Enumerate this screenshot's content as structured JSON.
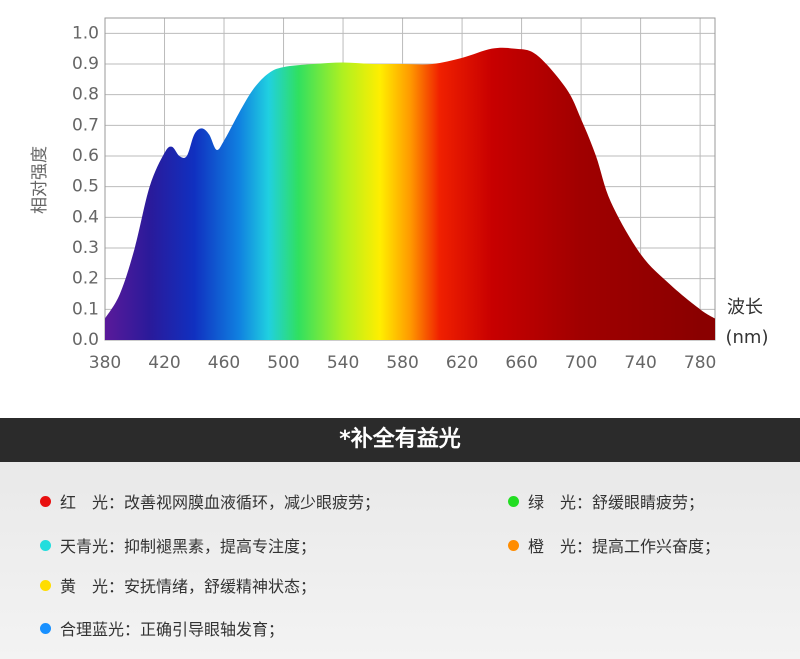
{
  "chart_data": {
    "type": "spectrum-area",
    "ylabel": "相对强度",
    "xlabel": "波长",
    "xlabel_unit": "(nm)",
    "x": [
      380,
      390,
      400,
      410,
      420,
      425,
      430,
      435,
      440,
      445,
      450,
      455,
      460,
      470,
      480,
      490,
      500,
      520,
      540,
      560,
      580,
      600,
      620,
      640,
      655,
      670,
      690,
      700,
      710,
      720,
      740,
      760,
      780,
      790
    ],
    "y": [
      0.07,
      0.15,
      0.3,
      0.5,
      0.61,
      0.63,
      0.6,
      0.6,
      0.67,
      0.69,
      0.67,
      0.62,
      0.65,
      0.74,
      0.82,
      0.87,
      0.89,
      0.9,
      0.905,
      0.9,
      0.9,
      0.9,
      0.92,
      0.95,
      0.95,
      0.93,
      0.82,
      0.72,
      0.6,
      0.45,
      0.28,
      0.18,
      0.1,
      0.07
    ],
    "gradient_nm": [
      380,
      410,
      440,
      470,
      490,
      510,
      540,
      565,
      585,
      605,
      640,
      700,
      780
    ],
    "gradient_colors": [
      "#5a1a9a",
      "#2a1a9a",
      "#1030c0",
      "#1080e0",
      "#20d0e0",
      "#30e060",
      "#b0f020",
      "#ffee00",
      "#ff9a00",
      "#f02000",
      "#c80000",
      "#a00000",
      "#8a0000"
    ],
    "xlim": [
      380,
      790
    ],
    "ylim": [
      0,
      1.05
    ],
    "xticks": [
      380,
      420,
      460,
      500,
      540,
      580,
      620,
      660,
      700,
      740,
      780
    ],
    "yticks": [
      {
        "value": 1,
        "label": "1.0"
      },
      0.9,
      0.8,
      0.7,
      0.6,
      0.5,
      0.4,
      0.3,
      0.2,
      0.1,
      {
        "value": 0,
        "label": "0.0"
      }
    ],
    "grid": true
  },
  "benefits": {
    "title": "*补全有益光",
    "items": [
      {
        "color": "#e81010",
        "label": "红　光：",
        "text": "改善视网膜血液循环，减少眼疲劳；"
      },
      {
        "color": "#22dd22",
        "label": "绿　光：",
        "text": "舒缓眼睛疲劳；"
      },
      {
        "color": "#22dddd",
        "label": "天青光：",
        "text": "抑制褪黑素，提高专注度；"
      },
      {
        "color": "#ff8c00",
        "label": "橙　光：",
        "text": "提高工作兴奋度；"
      },
      {
        "color": "#ffdd00",
        "label": "黄　光：",
        "text": "安抚情绪，舒缓精神状态；"
      },
      {
        "color": "#1890ff",
        "label": "合理蓝光：",
        "text": "正确引导眼轴发育；"
      }
    ]
  }
}
